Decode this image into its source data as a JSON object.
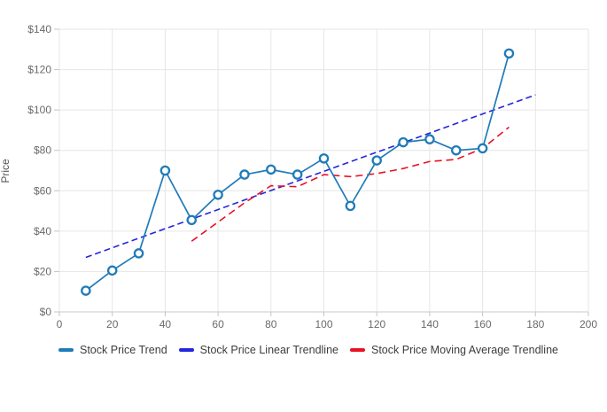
{
  "chart_data": {
    "type": "line",
    "title": "",
    "xlabel": "",
    "ylabel": "Price",
    "xlim": [
      0,
      200
    ],
    "ylim": [
      0,
      140
    ],
    "x_ticks": [
      0,
      20,
      40,
      60,
      80,
      100,
      120,
      140,
      160,
      180,
      200
    ],
    "x_tick_labels": [
      "0",
      "20",
      "40",
      "60",
      "80",
      "100",
      "120",
      "140",
      "160",
      "180",
      "200"
    ],
    "y_ticks": [
      0,
      20,
      40,
      60,
      80,
      100,
      120,
      140
    ],
    "y_tick_labels": [
      "$0",
      "$20",
      "$40",
      "$60",
      "$80",
      "$100",
      "$120",
      "$140"
    ],
    "grid": true,
    "legend_position": "bottom",
    "series": [
      {
        "name": "Stock Price Trend",
        "style": "solid-with-markers",
        "color": "#1f7bb8",
        "x": [
          10,
          20,
          30,
          40,
          50,
          60,
          70,
          80,
          90,
          100,
          110,
          120,
          130,
          140,
          150,
          160,
          170
        ],
        "y": [
          10.5,
          20.5,
          29,
          70,
          45.5,
          58,
          68,
          70.5,
          68,
          76,
          52.5,
          75,
          84,
          85.5,
          80,
          81,
          128
        ]
      },
      {
        "name": "Stock Price Linear Trendline",
        "style": "dashed",
        "color": "#2525dd",
        "x": [
          10,
          180
        ],
        "y": [
          27,
          107.5
        ]
      },
      {
        "name": "Stock Price Moving Average Trendline",
        "style": "dashed",
        "color": "#e81123",
        "x": [
          50,
          60,
          70,
          80,
          90,
          100,
          110,
          120,
          130,
          140,
          150,
          160,
          170
        ],
        "y": [
          35,
          44.5,
          54,
          62.5,
          62,
          68,
          67,
          68.5,
          71,
          74.5,
          75.5,
          81,
          91.5
        ]
      }
    ]
  },
  "legend": {
    "items": [
      {
        "label": "Stock Price Trend",
        "color": "#1f7bb8"
      },
      {
        "label": "Stock Price Linear Trendline",
        "color": "#2525dd"
      },
      {
        "label": "Stock Price Moving Average Trendline",
        "color": "#e81123"
      }
    ]
  }
}
